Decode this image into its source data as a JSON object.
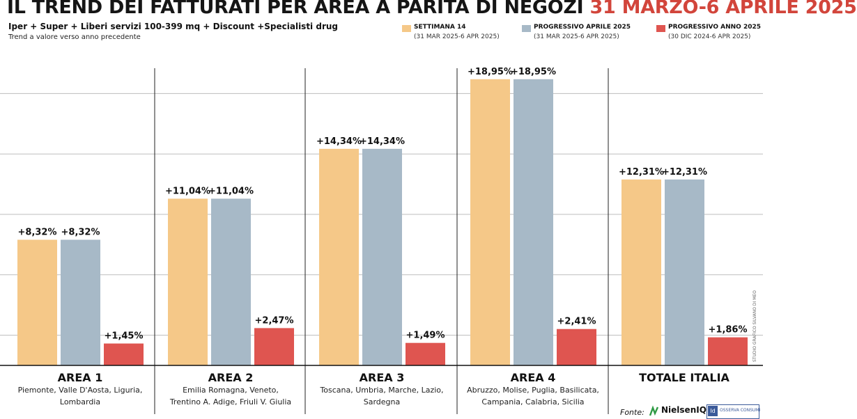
{
  "title": {
    "main": "IL TREND DEI FATTURATI PER AREA A PARITÀ DI NEGOZI",
    "dates": "31 MARZO-6 APRILE 2025"
  },
  "subtitle": "Iper + Super + Liberi servizi 100-399 mq + Discount +Specialisti drug",
  "trend_note": "Trend a valore verso anno precedente",
  "legend": [
    {
      "label": "SETTIMANA 14",
      "period": "(31 MAR 2025-6 APR 2025)"
    },
    {
      "label": "PROGRESSIVO APRILE 2025",
      "period": "(31 MAR 2025-6 APR 2025)"
    },
    {
      "label": "PROGRESSIVO ANNO 2025",
      "period": "(30 DIC 2024-6 APR 2025)"
    }
  ],
  "source": {
    "label": "Fonte:",
    "nielsen": "NielsenIQ",
    "osserva": "OSSERVA CONSUMI"
  },
  "credit": "STUDIO GRAFICO SILVANO DI MEO",
  "chart_data": {
    "type": "bar",
    "categories": [
      "AREA 1",
      "AREA 2",
      "AREA 3",
      "AREA 4",
      "TOTALE ITALIA"
    ],
    "subcategories": [
      "Piemonte, Valle D'Aosta, Liguria,\nLombardia",
      "Emilia Romagna, Veneto,\nTrentino A. Adige, Friuli V. Giulia",
      "Toscana, Umbria, Marche, Lazio,\nSardegna",
      "Abruzzo, Molise, Puglia, Basilicata,\nCampania, Calabria, Sicilia",
      ""
    ],
    "series": [
      {
        "name": "SETTIMANA 14",
        "color": "#f5c888",
        "values": [
          8.32,
          11.04,
          14.34,
          18.95,
          12.31
        ],
        "labels": [
          "+8,32%",
          "+11,04%",
          "+14,34%",
          "+18,95%",
          "+12,31%"
        ]
      },
      {
        "name": "PROGRESSIVO APRILE 2025",
        "color": "#a7b9c7",
        "values": [
          8.32,
          11.04,
          14.34,
          18.95,
          12.31
        ],
        "labels": [
          "+8,32%",
          "+11,04%",
          "+14,34%",
          "+18,95%",
          "+12,31%"
        ]
      },
      {
        "name": "PROGRESSIVO ANNO 2025",
        "color": "#df5550",
        "values": [
          1.45,
          2.47,
          1.49,
          2.41,
          1.86
        ],
        "labels": [
          "+1,45%",
          "+2,47%",
          "+1,49%",
          "+2,41%",
          "+1,86%"
        ]
      }
    ],
    "ylim": [
      0,
      20
    ],
    "grid": true,
    "legend_position": "top-right"
  }
}
